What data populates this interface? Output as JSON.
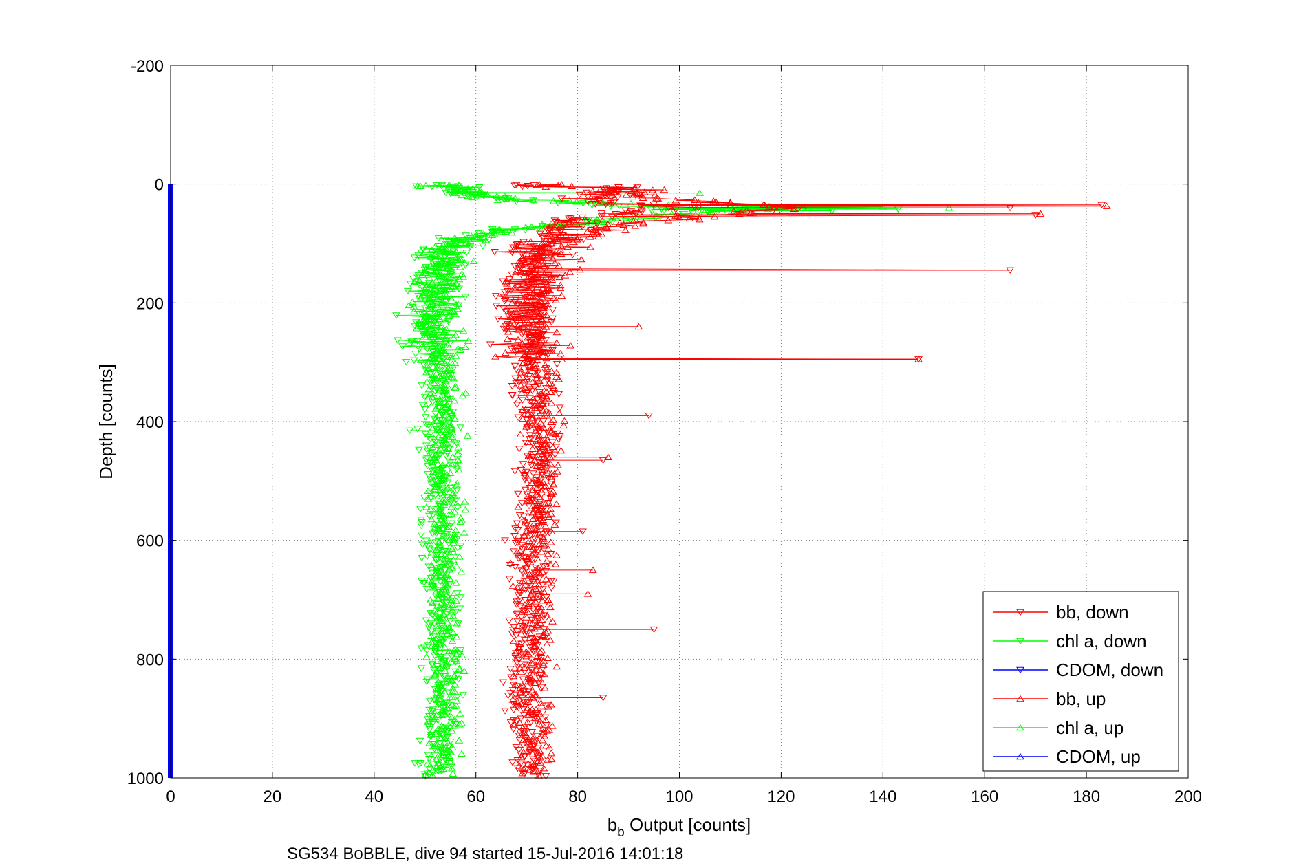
{
  "chart_data": {
    "type": "scatter",
    "xlabel_main": "b",
    "xlabel_sub": "b",
    "xlabel_rest": " Output [counts]",
    "ylabel": "Depth [counts]",
    "caption": "SG534 BoBBLE, dive 94 started 15-Jul-2016 14:01:18",
    "xlim": [
      0,
      200
    ],
    "ylim": [
      -200,
      1000
    ],
    "y_reversed": true,
    "grid": true,
    "x_ticks": [
      "0",
      "20",
      "40",
      "60",
      "80",
      "100",
      "120",
      "140",
      "160",
      "180",
      "200"
    ],
    "y_ticks": [
      "-200",
      "0",
      "200",
      "400",
      "600",
      "800",
      "1000"
    ],
    "legend_position": "bottom-right",
    "colors": {
      "bb": "#ff0000",
      "chl": "#00ff00",
      "cdom": "#0000ff"
    },
    "legend": [
      {
        "label": "bb, down",
        "color": "#ff0000",
        "marker": "triangle-down"
      },
      {
        "label": "chl a, down",
        "color": "#00ff00",
        "marker": "triangle-down"
      },
      {
        "label": "CDOM, down",
        "color": "#0000ff",
        "marker": "triangle-down"
      },
      {
        "label": "bb, up",
        "color": "#ff0000",
        "marker": "triangle-up"
      },
      {
        "label": "chl a, up",
        "color": "#00ff00",
        "marker": "triangle-up"
      },
      {
        "label": "CDOM, up",
        "color": "#0000ff",
        "marker": "triangle-up"
      }
    ],
    "series": [
      {
        "name": "bb, down",
        "color": "#ff0000",
        "marker": "triangle-down",
        "profile": [
          [
            5,
            90
          ],
          [
            15,
            85
          ],
          [
            30,
            84
          ],
          [
            40,
            100
          ],
          [
            50,
            86
          ],
          [
            60,
            80
          ],
          [
            80,
            76
          ],
          [
            100,
            73
          ],
          [
            130,
            71
          ],
          [
            160,
            70
          ],
          [
            200,
            70
          ],
          [
            240,
            70
          ],
          [
            280,
            70
          ],
          [
            300,
            71
          ],
          [
            400,
            72
          ],
          [
            500,
            72
          ],
          [
            600,
            71
          ],
          [
            700,
            71
          ],
          [
            800,
            70
          ],
          [
            900,
            70
          ],
          [
            995,
            70
          ]
        ],
        "spread": 3.5,
        "outliers": [
          [
            165,
            40
          ],
          [
            170,
            52
          ],
          [
            165,
            145
          ],
          [
            183,
            35
          ],
          [
            147,
            295
          ],
          [
            94,
            390
          ],
          [
            85,
            465
          ],
          [
            81,
            585
          ],
          [
            95,
            750
          ],
          [
            85,
            865
          ],
          [
            64,
            205
          ]
        ]
      },
      {
        "name": "chl a, down",
        "color": "#00ff00",
        "marker": "triangle-down",
        "profile": [
          [
            5,
            57
          ],
          [
            15,
            58
          ],
          [
            25,
            63
          ],
          [
            35,
            85
          ],
          [
            45,
            105
          ],
          [
            55,
            95
          ],
          [
            70,
            75
          ],
          [
            85,
            60
          ],
          [
            100,
            56
          ],
          [
            130,
            53
          ],
          [
            160,
            52
          ],
          [
            200,
            51
          ],
          [
            240,
            51
          ],
          [
            280,
            52
          ],
          [
            300,
            52
          ],
          [
            400,
            53
          ],
          [
            500,
            53
          ],
          [
            600,
            53
          ],
          [
            700,
            53
          ],
          [
            800,
            53
          ],
          [
            900,
            53
          ],
          [
            995,
            51
          ]
        ],
        "spread": 3,
        "outliers": [
          [
            143,
            42
          ],
          [
            130,
            45
          ],
          [
            47,
            415
          ],
          [
            48,
            975
          ],
          [
            57,
            785
          ]
        ]
      },
      {
        "name": "CDOM, down",
        "color": "#0000ff",
        "marker": "triangle-down",
        "profile": [
          [
            0,
            0
          ],
          [
            1000,
            0
          ]
        ],
        "spread": 0,
        "outliers": []
      },
      {
        "name": "bb, up",
        "color": "#ff0000",
        "marker": "triangle-up",
        "profile": [
          [
            5,
            88
          ],
          [
            20,
            92
          ],
          [
            40,
            120
          ],
          [
            50,
            110
          ],
          [
            60,
            95
          ],
          [
            80,
            82
          ],
          [
            100,
            76
          ],
          [
            130,
            73
          ],
          [
            160,
            72
          ],
          [
            200,
            71
          ],
          [
            240,
            71
          ],
          [
            280,
            71
          ],
          [
            300,
            72
          ],
          [
            400,
            73
          ],
          [
            500,
            73
          ],
          [
            600,
            72
          ],
          [
            700,
            72
          ],
          [
            800,
            71
          ],
          [
            900,
            71
          ],
          [
            995,
            72
          ]
        ],
        "spread": 3.5,
        "outliers": [
          [
            184,
            37
          ],
          [
            171,
            50
          ],
          [
            147,
            295
          ],
          [
            92,
            240
          ],
          [
            86,
            460
          ],
          [
            83,
            650
          ],
          [
            82,
            690
          ]
        ]
      },
      {
        "name": "chl a, up",
        "color": "#00ff00",
        "marker": "triangle-up",
        "profile": [
          [
            5,
            56
          ],
          [
            15,
            58
          ],
          [
            25,
            62
          ],
          [
            40,
            120
          ],
          [
            50,
            100
          ],
          [
            60,
            85
          ],
          [
            80,
            62
          ],
          [
            100,
            56
          ],
          [
            130,
            54
          ],
          [
            160,
            53
          ],
          [
            200,
            52
          ],
          [
            240,
            52
          ],
          [
            280,
            53
          ],
          [
            300,
            53
          ],
          [
            400,
            54
          ],
          [
            500,
            54
          ],
          [
            600,
            54
          ],
          [
            700,
            54
          ],
          [
            800,
            54
          ],
          [
            900,
            54
          ],
          [
            995,
            53
          ]
        ],
        "spread": 3,
        "outliers": [
          [
            153,
            40
          ],
          [
            140,
            38
          ],
          [
            104,
            15
          ]
        ]
      },
      {
        "name": "CDOM, up",
        "color": "#0000ff",
        "marker": "triangle-up",
        "profile": [
          [
            0,
            0
          ],
          [
            1000,
            0
          ]
        ],
        "spread": 0,
        "outliers": []
      }
    ]
  }
}
